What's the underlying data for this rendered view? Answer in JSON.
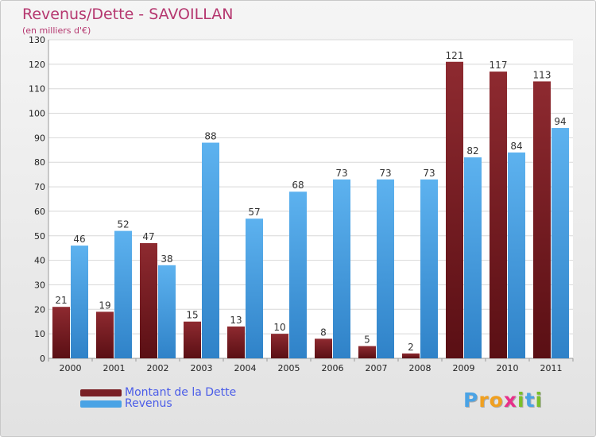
{
  "title": "Revenus/Dette - SAVOILLAN",
  "subtitle": "(en milliers d'€)",
  "colors": {
    "dette": "#7a1f24",
    "revenus": "#4aa3e5",
    "title": "#b5376f",
    "legend_text": "#4a5ce8"
  },
  "legend": {
    "dette": "Montant de la Dette",
    "revenus": "Revenus"
  },
  "logo_letters": [
    {
      "ch": "P",
      "color": "#4aa3e5"
    },
    {
      "ch": "r",
      "color": "#f0a020"
    },
    {
      "ch": "o",
      "color": "#f0a020"
    },
    {
      "ch": "x",
      "color": "#e8308a"
    },
    {
      "ch": "i",
      "color": "#7bbf2a"
    },
    {
      "ch": "t",
      "color": "#4aa3e5"
    },
    {
      "ch": "i",
      "color": "#7bbf2a"
    }
  ],
  "chart_data": {
    "type": "bar",
    "title": "Revenus/Dette - SAVOILLAN",
    "ylabel": "(en milliers d'€)",
    "xlabel": "",
    "categories": [
      "2000",
      "2001",
      "2002",
      "2003",
      "2004",
      "2005",
      "2006",
      "2007",
      "2008",
      "2009",
      "2010",
      "2011"
    ],
    "series": [
      {
        "name": "Montant de la Dette",
        "values": [
          21,
          19,
          47,
          15,
          13,
          10,
          8,
          5,
          2,
          121,
          117,
          113
        ]
      },
      {
        "name": "Revenus",
        "values": [
          46,
          52,
          38,
          88,
          57,
          68,
          73,
          73,
          73,
          82,
          84,
          94
        ]
      }
    ],
    "ylim": [
      0,
      130
    ],
    "yticks": [
      0,
      10,
      20,
      30,
      40,
      50,
      60,
      70,
      80,
      90,
      100,
      110,
      120,
      130
    ],
    "grid": true,
    "legend_position": "bottom-left"
  }
}
